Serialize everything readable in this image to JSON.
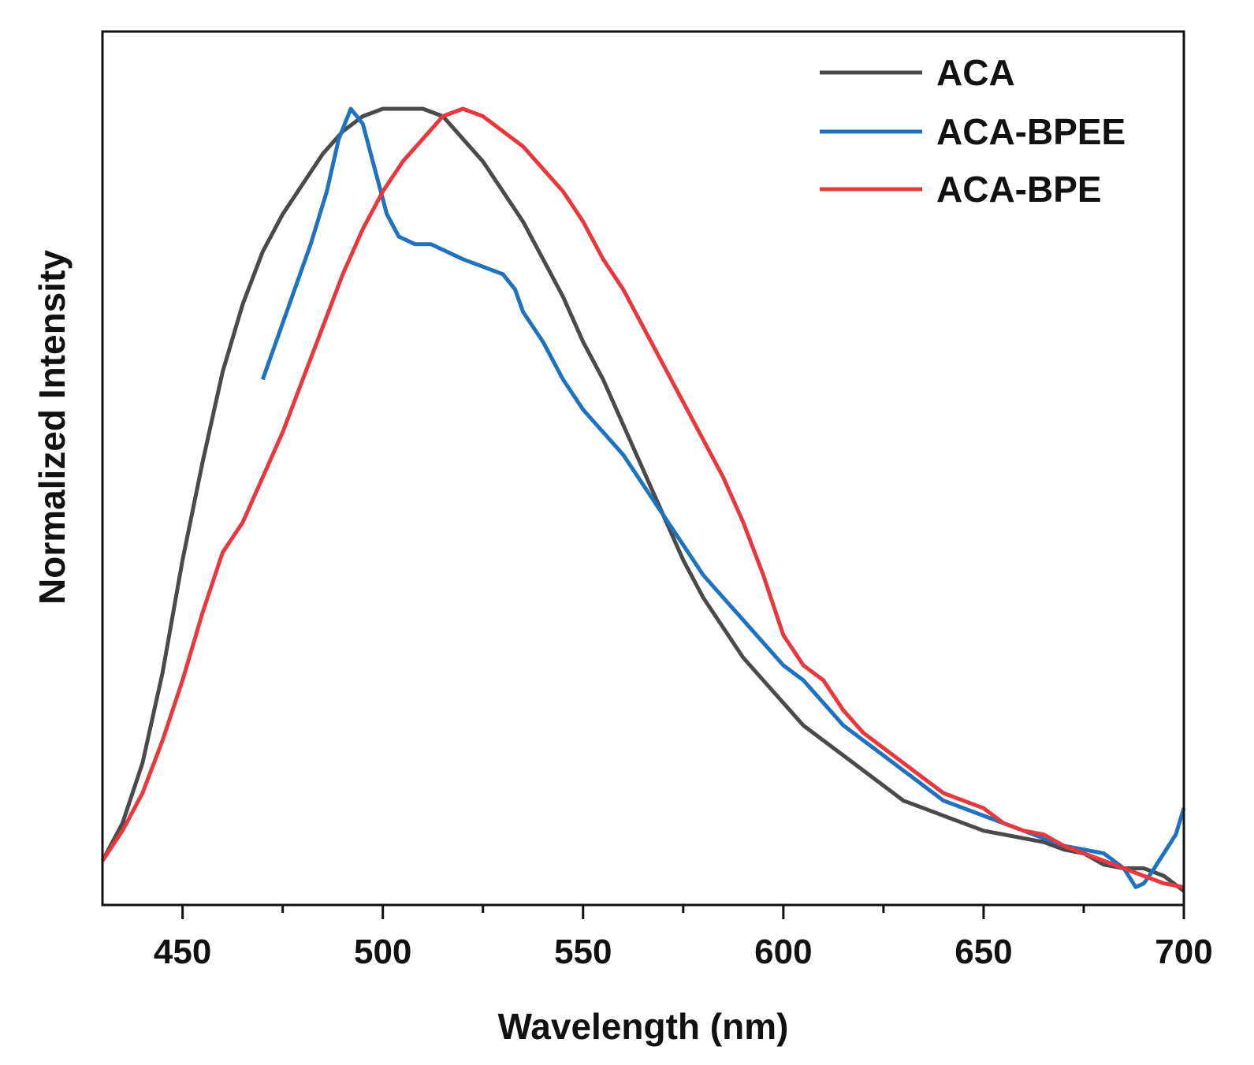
{
  "chart_data": {
    "type": "line",
    "title": "",
    "xlabel": "Wavelength (nm)",
    "ylabel": "Normalized Intensity",
    "xlim": [
      430,
      700
    ],
    "ylim": [
      0,
      1.05
    ],
    "x_major_ticks": [
      450,
      500,
      550,
      600,
      650,
      700
    ],
    "x_minor_ticks": [
      475,
      525,
      575,
      625,
      675
    ],
    "x_tick_labels": [
      "450",
      "500",
      "550",
      "600",
      "650",
      "700"
    ],
    "y_tick_labels": [],
    "grid": false,
    "legend_position": "top-right",
    "series": [
      {
        "name": "ACA",
        "color": "#4a4a4a",
        "points": [
          [
            430,
            0.0
          ],
          [
            435,
            0.05
          ],
          [
            440,
            0.13
          ],
          [
            445,
            0.25
          ],
          [
            450,
            0.4
          ],
          [
            455,
            0.53
          ],
          [
            460,
            0.65
          ],
          [
            465,
            0.74
          ],
          [
            470,
            0.81
          ],
          [
            475,
            0.86
          ],
          [
            480,
            0.9
          ],
          [
            485,
            0.94
          ],
          [
            490,
            0.97
          ],
          [
            495,
            0.99
          ],
          [
            500,
            1.0
          ],
          [
            505,
            1.0
          ],
          [
            510,
            1.0
          ],
          [
            515,
            0.99
          ],
          [
            520,
            0.96
          ],
          [
            525,
            0.93
          ],
          [
            530,
            0.89
          ],
          [
            535,
            0.85
          ],
          [
            540,
            0.8
          ],
          [
            545,
            0.75
          ],
          [
            550,
            0.69
          ],
          [
            555,
            0.64
          ],
          [
            560,
            0.58
          ],
          [
            565,
            0.52
          ],
          [
            570,
            0.46
          ],
          [
            575,
            0.4
          ],
          [
            580,
            0.35
          ],
          [
            585,
            0.31
          ],
          [
            590,
            0.27
          ],
          [
            595,
            0.24
          ],
          [
            600,
            0.21
          ],
          [
            605,
            0.18
          ],
          [
            610,
            0.16
          ],
          [
            615,
            0.14
          ],
          [
            620,
            0.12
          ],
          [
            625,
            0.1
          ],
          [
            630,
            0.08
          ],
          [
            635,
            0.07
          ],
          [
            640,
            0.06
          ],
          [
            645,
            0.05
          ],
          [
            650,
            0.04
          ],
          [
            655,
            0.035
          ],
          [
            660,
            0.03
          ],
          [
            665,
            0.025
          ],
          [
            670,
            0.015
          ],
          [
            675,
            0.01
          ],
          [
            680,
            -0.005
          ],
          [
            685,
            -0.01
          ],
          [
            690,
            -0.01
          ],
          [
            695,
            -0.02
          ],
          [
            700,
            -0.04
          ]
        ]
      },
      {
        "name": "ACA-BPEE",
        "color": "#1f72c0",
        "points": [
          [
            470,
            0.64
          ],
          [
            474,
            0.7
          ],
          [
            478,
            0.76
          ],
          [
            482,
            0.82
          ],
          [
            486,
            0.89
          ],
          [
            489,
            0.96
          ],
          [
            492,
            1.0
          ],
          [
            495,
            0.98
          ],
          [
            498,
            0.92
          ],
          [
            501,
            0.86
          ],
          [
            504,
            0.83
          ],
          [
            508,
            0.82
          ],
          [
            512,
            0.82
          ],
          [
            516,
            0.81
          ],
          [
            520,
            0.8
          ],
          [
            525,
            0.79
          ],
          [
            530,
            0.78
          ],
          [
            533,
            0.76
          ],
          [
            535,
            0.73
          ],
          [
            540,
            0.69
          ],
          [
            545,
            0.64
          ],
          [
            550,
            0.6
          ],
          [
            555,
            0.57
          ],
          [
            560,
            0.54
          ],
          [
            565,
            0.5
          ],
          [
            570,
            0.46
          ],
          [
            575,
            0.42
          ],
          [
            580,
            0.38
          ],
          [
            585,
            0.35
          ],
          [
            590,
            0.32
          ],
          [
            595,
            0.29
          ],
          [
            600,
            0.26
          ],
          [
            605,
            0.24
          ],
          [
            610,
            0.21
          ],
          [
            615,
            0.18
          ],
          [
            620,
            0.16
          ],
          [
            625,
            0.14
          ],
          [
            630,
            0.12
          ],
          [
            635,
            0.1
          ],
          [
            640,
            0.08
          ],
          [
            645,
            0.07
          ],
          [
            650,
            0.06
          ],
          [
            655,
            0.05
          ],
          [
            660,
            0.04
          ],
          [
            665,
            0.03
          ],
          [
            670,
            0.02
          ],
          [
            675,
            0.015
          ],
          [
            680,
            0.01
          ],
          [
            685,
            -0.01
          ],
          [
            688,
            -0.035
          ],
          [
            690,
            -0.03
          ],
          [
            692,
            -0.015
          ],
          [
            695,
            0.01
          ],
          [
            698,
            0.035
          ],
          [
            700,
            0.07
          ]
        ]
      },
      {
        "name": "ACA-BPE",
        "color": "#e8383d",
        "points": [
          [
            430,
            0.0
          ],
          [
            435,
            0.04
          ],
          [
            440,
            0.09
          ],
          [
            445,
            0.16
          ],
          [
            450,
            0.24
          ],
          [
            455,
            0.33
          ],
          [
            460,
            0.41
          ],
          [
            465,
            0.45
          ],
          [
            470,
            0.51
          ],
          [
            475,
            0.57
          ],
          [
            480,
            0.64
          ],
          [
            485,
            0.71
          ],
          [
            490,
            0.78
          ],
          [
            495,
            0.84
          ],
          [
            500,
            0.89
          ],
          [
            505,
            0.93
          ],
          [
            510,
            0.96
          ],
          [
            515,
            0.99
          ],
          [
            520,
            1.0
          ],
          [
            525,
            0.99
          ],
          [
            530,
            0.97
          ],
          [
            535,
            0.95
          ],
          [
            540,
            0.92
          ],
          [
            545,
            0.89
          ],
          [
            550,
            0.85
          ],
          [
            555,
            0.8
          ],
          [
            560,
            0.76
          ],
          [
            565,
            0.71
          ],
          [
            570,
            0.66
          ],
          [
            575,
            0.61
          ],
          [
            580,
            0.56
          ],
          [
            585,
            0.51
          ],
          [
            590,
            0.45
          ],
          [
            595,
            0.38
          ],
          [
            600,
            0.3
          ],
          [
            605,
            0.26
          ],
          [
            610,
            0.24
          ],
          [
            615,
            0.2
          ],
          [
            620,
            0.17
          ],
          [
            625,
            0.15
          ],
          [
            630,
            0.13
          ],
          [
            635,
            0.11
          ],
          [
            640,
            0.09
          ],
          [
            645,
            0.08
          ],
          [
            650,
            0.07
          ],
          [
            655,
            0.05
          ],
          [
            660,
            0.04
          ],
          [
            665,
            0.035
          ],
          [
            670,
            0.02
          ],
          [
            675,
            0.01
          ],
          [
            680,
            0.0
          ],
          [
            685,
            -0.01
          ],
          [
            690,
            -0.02
          ],
          [
            695,
            -0.03
          ],
          [
            700,
            -0.035
          ]
        ]
      }
    ]
  }
}
